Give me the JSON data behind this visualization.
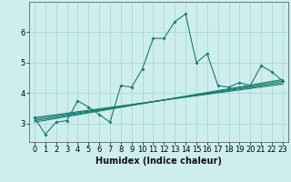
{
  "xlabel": "Humidex (Indice chaleur)",
  "xlim": [
    -0.5,
    23.5
  ],
  "ylim": [
    2.4,
    7.0
  ],
  "yticks": [
    3,
    4,
    5,
    6
  ],
  "xticks": [
    0,
    1,
    2,
    3,
    4,
    5,
    6,
    7,
    8,
    9,
    10,
    11,
    12,
    13,
    14,
    15,
    16,
    17,
    18,
    19,
    20,
    21,
    22,
    23
  ],
  "main_line_x": [
    0,
    1,
    2,
    3,
    4,
    5,
    6,
    7,
    8,
    9,
    10,
    11,
    12,
    13,
    14,
    15,
    16,
    17,
    18,
    19,
    20,
    21,
    22,
    23
  ],
  "main_line_y": [
    3.2,
    2.65,
    3.05,
    3.1,
    3.75,
    3.55,
    3.3,
    3.05,
    4.25,
    4.2,
    4.8,
    5.8,
    5.8,
    6.35,
    6.6,
    5.0,
    5.3,
    4.25,
    4.2,
    4.35,
    4.25,
    4.9,
    4.7,
    4.4
  ],
  "trend_lines": [
    {
      "x": [
        0,
        23
      ],
      "y": [
        3.05,
        4.45
      ]
    },
    {
      "x": [
        0,
        23
      ],
      "y": [
        3.1,
        4.4
      ]
    },
    {
      "x": [
        0,
        23
      ],
      "y": [
        3.15,
        4.35
      ]
    },
    {
      "x": [
        0,
        23
      ],
      "y": [
        3.2,
        4.3
      ]
    }
  ],
  "line_color": "#1a7a6e",
  "bg_color": "#cdeeed",
  "grid_color": "#a8d8d4",
  "tick_fontsize": 6,
  "xlabel_fontsize": 7,
  "xlabel_fontweight": "bold"
}
